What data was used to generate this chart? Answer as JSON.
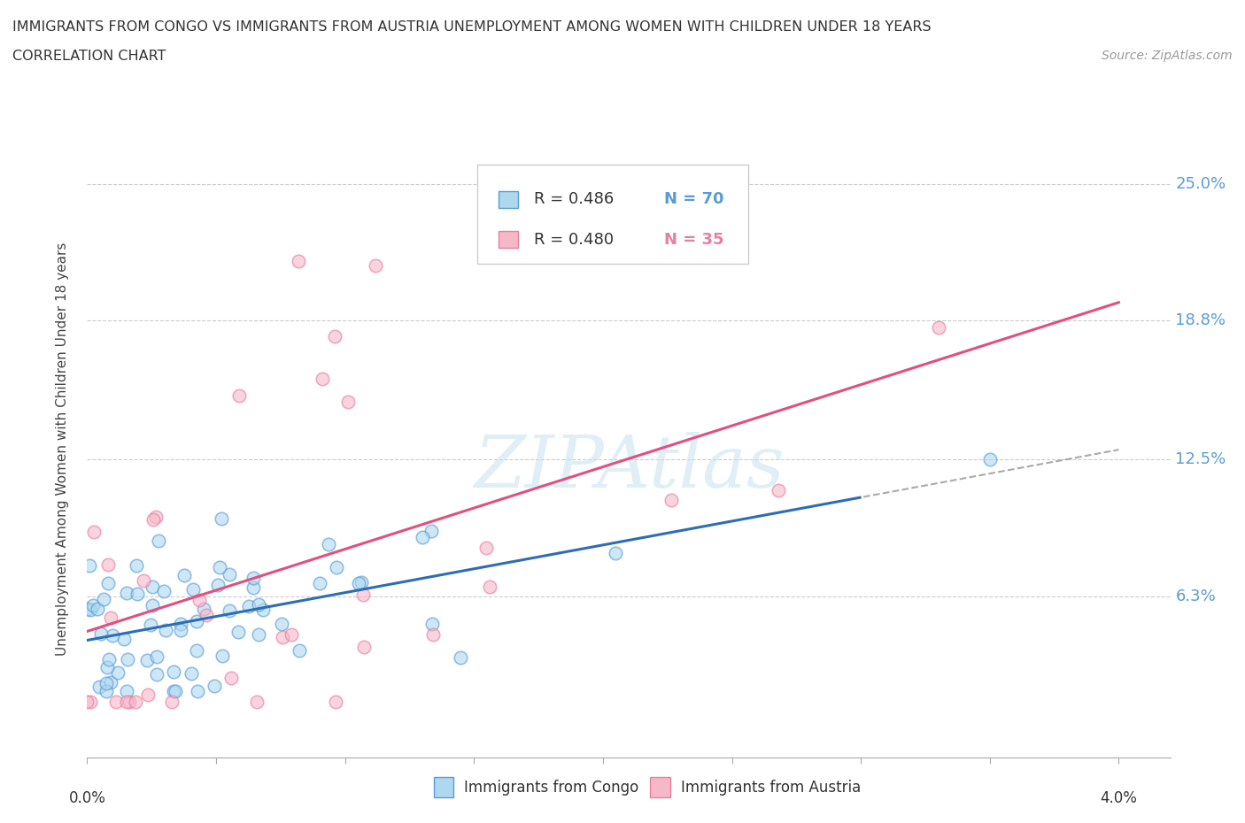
{
  "title_line1": "IMMIGRANTS FROM CONGO VS IMMIGRANTS FROM AUSTRIA UNEMPLOYMENT AMONG WOMEN WITH CHILDREN UNDER 18 YEARS",
  "title_line2": "CORRELATION CHART",
  "source_text": "Source: ZipAtlas.com",
  "xlim": [
    0.0,
    4.2
  ],
  "ylim": [
    -1.0,
    27.0
  ],
  "ylabel_values": [
    6.3,
    12.5,
    18.8,
    25.0
  ],
  "ylabel_ticks": [
    "6.3%",
    "12.5%",
    "18.8%",
    "25.0%"
  ],
  "legend_r_congo": "R = 0.486",
  "legend_n_congo": "N = 70",
  "legend_r_austria": "R = 0.480",
  "legend_n_austria": "N = 35",
  "congo_fill_color": "#add8f0",
  "austria_fill_color": "#f5b8c8",
  "congo_edge_color": "#5b9bd5",
  "austria_edge_color": "#e87ea1",
  "congo_line_color": "#2e6db4",
  "austria_line_color": "#e05080",
  "dash_line_color": "#aaaaaa",
  "watermark_color": "#c8e0f0",
  "legend_label_congo": "Immigrants from Congo",
  "legend_label_austria": "Immigrants from Austria",
  "grid_color": "#cccccc",
  "ylabel_color": "#5b9bd5",
  "title_color": "#333333",
  "source_color": "#999999"
}
